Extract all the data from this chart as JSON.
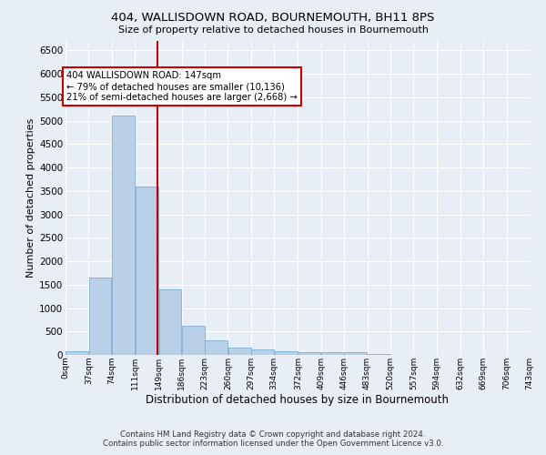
{
  "title": "404, WALLISDOWN ROAD, BOURNEMOUTH, BH11 8PS",
  "subtitle": "Size of property relative to detached houses in Bournemouth",
  "xlabel": "Distribution of detached houses by size in Bournemouth",
  "ylabel": "Number of detached properties",
  "bar_color": "#b8d0e8",
  "bar_edge_color": "#7aaed4",
  "background_color": "#e8eef6",
  "grid_color": "#ffffff",
  "annotation_line_color": "#cc0000",
  "annotation_text": "404 WALLISDOWN ROAD: 147sqm\n← 79% of detached houses are smaller (10,136)\n21% of semi-detached houses are larger (2,668) →",
  "annotation_box_color": "#ffffff",
  "annotation_box_edge": "#cc0000",
  "property_size": 147,
  "footer_line1": "Contains HM Land Registry data © Crown copyright and database right 2024.",
  "footer_line2": "Contains public sector information licensed under the Open Government Licence v3.0.",
  "bin_edges": [
    0,
    37,
    74,
    111,
    149,
    186,
    223,
    260,
    297,
    334,
    372,
    409,
    446,
    483,
    520,
    557,
    594,
    632,
    669,
    706,
    743
  ],
  "bin_labels": [
    "0sqm",
    "37sqm",
    "74sqm",
    "111sqm",
    "149sqm",
    "186sqm",
    "223sqm",
    "260sqm",
    "297sqm",
    "334sqm",
    "372sqm",
    "409sqm",
    "446sqm",
    "483sqm",
    "520sqm",
    "557sqm",
    "594sqm",
    "632sqm",
    "669sqm",
    "706sqm",
    "743sqm"
  ],
  "bar_heights": [
    80,
    1650,
    5100,
    3600,
    1400,
    620,
    310,
    155,
    110,
    75,
    55,
    55,
    55,
    10,
    5,
    5,
    3,
    2,
    2,
    2
  ],
  "ylim": [
    0,
    6700
  ],
  "yticks": [
    0,
    500,
    1000,
    1500,
    2000,
    2500,
    3000,
    3500,
    4000,
    4500,
    5000,
    5500,
    6000,
    6500
  ]
}
